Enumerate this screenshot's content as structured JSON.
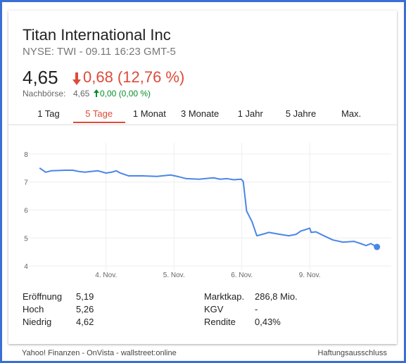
{
  "header": {
    "title": "Titan International Inc",
    "subtitle": "NYSE: TWI - 09.11 16:23 GMT-5"
  },
  "quote": {
    "price": "4,65",
    "change": "0,68 (12,76 %)",
    "after_hours_label": "Nachbörse:",
    "after_hours_price": "4,65",
    "after_hours_change": "0,00 (0,00 %)"
  },
  "tabs": [
    "1 Tag",
    "5 Tage",
    "1 Monat",
    "3 Monate",
    "1 Jahr",
    "5 Jahre",
    "Max."
  ],
  "active_tab": 1,
  "chart_data": {
    "type": "line",
    "x": [
      -0.98,
      -0.89,
      -0.81,
      -0.7,
      -0.6,
      -0.49,
      -0.41,
      -0.31,
      -0.21,
      -0.12,
      0,
      0.08,
      0.15,
      0.21,
      0.33,
      0.54,
      0.75,
      0.95,
      1.05,
      1.18,
      1.37,
      1.58,
      1.68,
      1.78,
      1.88,
      1.99,
      2.02,
      2.07,
      2.15,
      2.22,
      2.3,
      2.4,
      2.56,
      2.69,
      2.8,
      2.87,
      2.94,
      3.0,
      3.02,
      3.09,
      3.19,
      3.34,
      3.49,
      3.65,
      3.75,
      3.83,
      3.9,
      3.99
    ],
    "series": [
      {
        "color": "#4a86e8",
        "values": [
          7.5,
          7.35,
          7.4,
          7.41,
          7.42,
          7.42,
          7.38,
          7.35,
          7.38,
          7.4,
          7.32,
          7.35,
          7.4,
          7.32,
          7.22,
          7.22,
          7.2,
          7.25,
          7.2,
          7.12,
          7.1,
          7.15,
          7.1,
          7.12,
          7.08,
          7.1,
          7.02,
          5.96,
          5.58,
          5.08,
          5.13,
          5.2,
          5.13,
          5.08,
          5.13,
          5.25,
          5.3,
          5.35,
          5.2,
          5.22,
          5.1,
          4.93,
          4.85,
          4.88,
          4.8,
          4.73,
          4.8,
          4.68
        ]
      }
    ],
    "xlim": [
      -1.2,
      4.2
    ],
    "xticks": [
      {
        "value": 0,
        "label": "4. Nov."
      },
      {
        "value": 1,
        "label": "5. Nov."
      },
      {
        "value": 2,
        "label": "6. Nov."
      },
      {
        "value": 3,
        "label": "9. Nov."
      }
    ],
    "ylim": [
      3.6,
      8.4
    ],
    "yticks": [
      4,
      5,
      6,
      7,
      8
    ],
    "grid": true
  },
  "stats": {
    "left": [
      [
        "Eröffnung",
        "5,19"
      ],
      [
        "Hoch",
        "5,26"
      ],
      [
        "Niedrig",
        "4,62"
      ]
    ],
    "right": [
      [
        "Marktkap.",
        "286,8 Mio."
      ],
      [
        "KGV",
        "-"
      ],
      [
        "Rendite",
        "0,43%"
      ]
    ]
  },
  "footer": {
    "sources": "Yahoo! Finanzen - OnVista - wallstreet:online",
    "disclaimer": "Haftungsausschluss"
  }
}
